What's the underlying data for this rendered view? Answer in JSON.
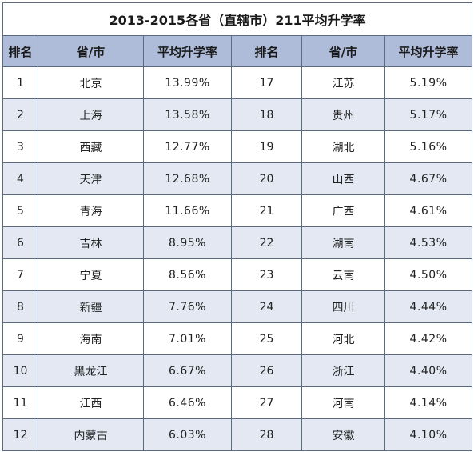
{
  "title": "2013-2015各省（直辖市）211平均升学率",
  "headers": [
    "排名",
    "省/市",
    "平均升学率",
    "排名",
    "省/市",
    "平均升学率"
  ],
  "rows": [
    {
      "rank_left": "1",
      "province_left": "北京",
      "rate_left": "13.99%",
      "rank_right": "17",
      "province_right": "江苏",
      "rate_right": "5.19%"
    },
    {
      "rank_left": "2",
      "province_left": "上海",
      "rate_left": "13.58%",
      "rank_right": "18",
      "province_right": "贵州",
      "rate_right": "5.17%"
    },
    {
      "rank_left": "3",
      "province_left": "西藏",
      "rate_left": "12.77%",
      "rank_right": "19",
      "province_right": "湖北",
      "rate_right": "5.16%"
    },
    {
      "rank_left": "4",
      "province_left": "天津",
      "rate_left": "12.68%",
      "rank_right": "20",
      "province_right": "山西",
      "rate_right": "4.67%"
    },
    {
      "rank_left": "5",
      "province_left": "青海",
      "rate_left": "11.66%",
      "rank_right": "21",
      "province_right": "广西",
      "rate_right": "4.61%"
    },
    {
      "rank_left": "6",
      "province_left": "吉林",
      "rate_left": "8.95%",
      "rank_right": "22",
      "province_right": "湖南",
      "rate_right": "4.53%"
    },
    {
      "rank_left": "7",
      "province_left": "宁夏",
      "rate_left": "8.56%",
      "rank_right": "23",
      "province_right": "云南",
      "rate_right": "4.50%"
    },
    {
      "rank_left": "8",
      "province_left": "新疆",
      "rate_left": "7.76%",
      "rank_right": "24",
      "province_right": "四川",
      "rate_right": "4.44%"
    },
    {
      "rank_left": "9",
      "province_left": "海南",
      "rate_left": "7.01%",
      "rank_right": "25",
      "province_right": "河北",
      "rate_right": "4.42%"
    },
    {
      "rank_left": "10",
      "province_left": "黑龙江",
      "rate_left": "6.67%",
      "rank_right": "26",
      "province_right": "浙江",
      "rate_right": "4.40%"
    },
    {
      "rank_left": "11",
      "province_left": "江西",
      "rate_left": "6.46%",
      "rank_right": "27",
      "province_right": "河南",
      "rate_right": "4.14%"
    },
    {
      "rank_left": "12",
      "province_left": "内蒙古",
      "rate_left": "6.03%",
      "rank_right": "28",
      "province_right": "安徽",
      "rate_right": "4.10%"
    }
  ],
  "colors": {
    "header_bg": "#aebcd9",
    "stripe_bg": "#e3e8f3",
    "border": "#5b6b80"
  }
}
